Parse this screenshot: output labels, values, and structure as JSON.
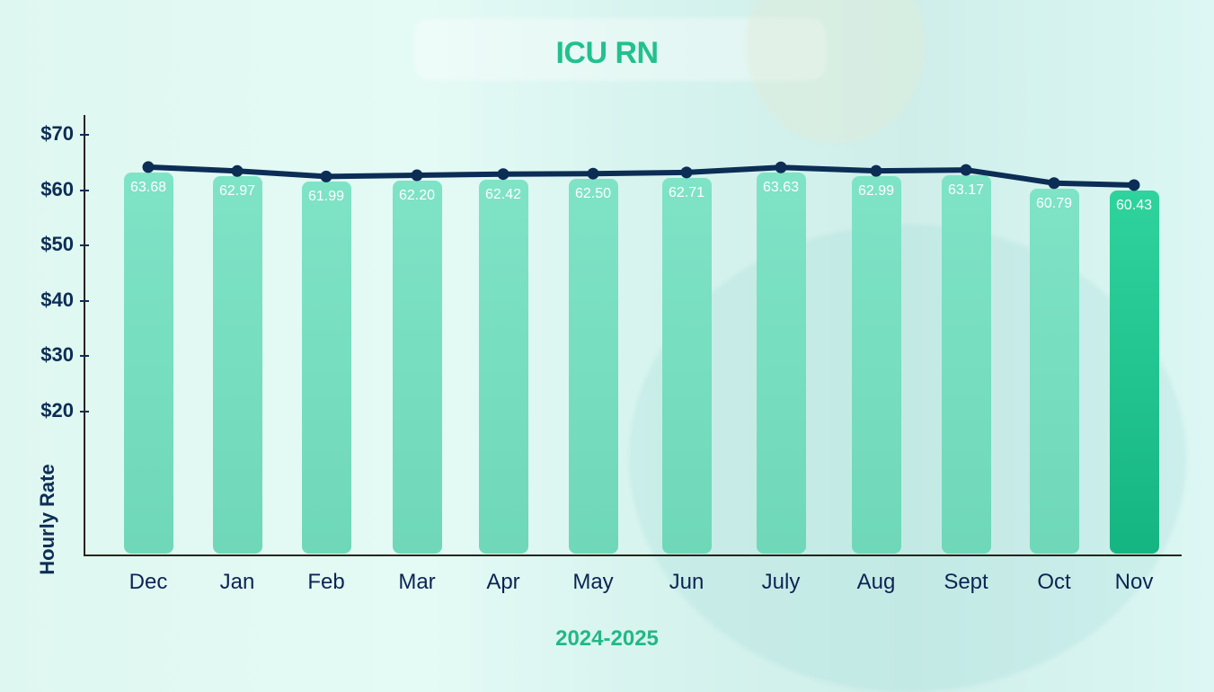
{
  "chart_data": {
    "type": "bar",
    "title": "ICU RN",
    "xlabel": "2024-2025",
    "ylabel": "Hourly Rate",
    "categories": [
      "Dec",
      "Jan",
      "Feb",
      "Mar",
      "Apr",
      "May",
      "Jun",
      "July",
      "Aug",
      "Sept",
      "Oct",
      "Nov"
    ],
    "values": [
      63.68,
      62.97,
      61.99,
      62.2,
      62.42,
      62.5,
      62.71,
      63.63,
      62.99,
      63.17,
      60.79,
      60.43
    ],
    "value_labels": [
      "63.68",
      "62.97",
      "61.99",
      "62.20",
      "62.42",
      "62.50",
      "62.71",
      "63.63",
      "62.99",
      "63.17",
      "60.79",
      "60.43"
    ],
    "overlay_line": true,
    "y_ticks": [
      "$70",
      "$60",
      "$50",
      "$40",
      "$30",
      "$20"
    ],
    "ylim": [
      20,
      70
    ],
    "grid": false,
    "legend": null,
    "colors": {
      "bar": "#7fe3c6",
      "highlight_bar": "#1cbf8a",
      "line": "#0c2d55",
      "title": "#22c08e",
      "axis_text": "#0c2d55"
    }
  },
  "header": {
    "title": "ICU RN"
  },
  "footer": {
    "period": "2024-2025"
  },
  "axis": {
    "y_title": "Hourly Rate"
  }
}
